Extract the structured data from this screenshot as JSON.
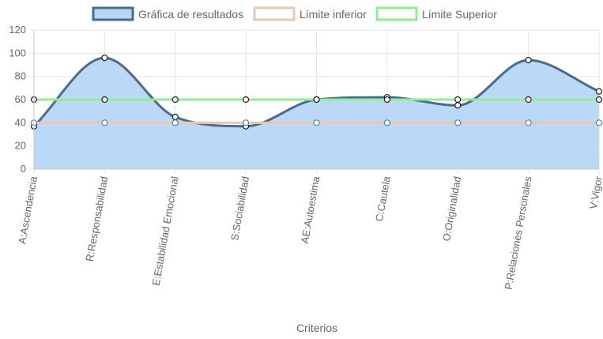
{
  "chart_data": {
    "type": "line",
    "xlabel": "Criterios",
    "ylabel": "",
    "ylim": [
      0,
      120
    ],
    "yticks": [
      0,
      20,
      40,
      60,
      80,
      100,
      120
    ],
    "grid": true,
    "legend_position": "top",
    "categories": [
      "A:Ascendencia",
      "R:Responsabilidad",
      "E:Estabilidad Emocional",
      "S:Sociabilidad",
      "AE:Autoestima",
      "C:Cautela",
      "O:Originalidad",
      "P:Relaciones Personales",
      "V:Vigor"
    ],
    "series": [
      {
        "name": "Límite inferior",
        "values": [
          40,
          40,
          40,
          40,
          40,
          40,
          40,
          40,
          40
        ],
        "color": "#e6c8b8",
        "fill": false
      },
      {
        "name": "Límite Superior",
        "values": [
          60,
          60,
          60,
          60,
          60,
          60,
          60,
          60,
          60
        ],
        "color": "#90ee90",
        "fill": false
      },
      {
        "name": "Gráfica de resultados",
        "values": [
          37,
          96,
          45,
          37,
          60,
          62,
          55,
          94,
          67
        ],
        "color": "#4a6b8a",
        "fill": true,
        "fill_color": "#b7d7f5"
      }
    ]
  }
}
